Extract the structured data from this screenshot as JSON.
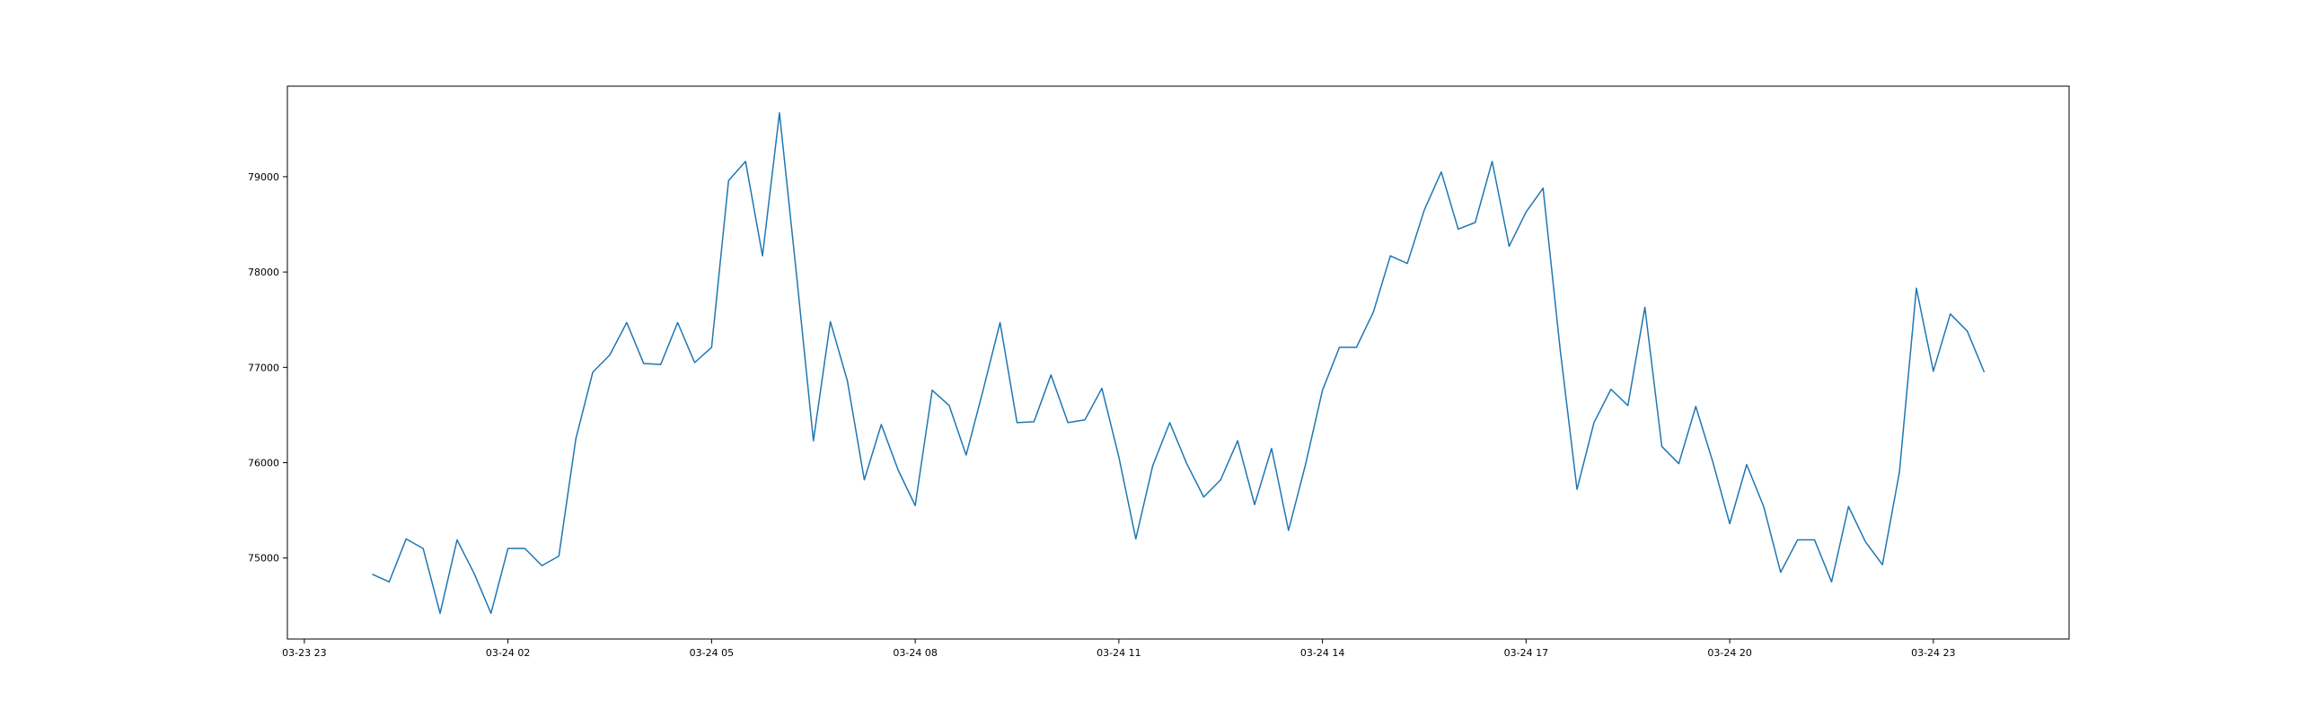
{
  "chart_data": {
    "type": "line",
    "title": "",
    "xlabel": "",
    "ylabel": "",
    "grid": false,
    "legend": "none",
    "x_range": [
      "2024-03-23 22:45",
      "2024-03-25 01:00"
    ],
    "ylim": [
      74150,
      79950
    ],
    "x_ticks": [
      {
        "t": "2024-03-23 23:00",
        "label": "03-23 23"
      },
      {
        "t": "2024-03-24 02:00",
        "label": "03-24 02"
      },
      {
        "t": "2024-03-24 05:00",
        "label": "03-24 05"
      },
      {
        "t": "2024-03-24 08:00",
        "label": "03-24 08"
      },
      {
        "t": "2024-03-24 11:00",
        "label": "03-24 11"
      },
      {
        "t": "2024-03-24 14:00",
        "label": "03-24 14"
      },
      {
        "t": "2024-03-24 17:00",
        "label": "03-24 17"
      },
      {
        "t": "2024-03-24 20:00",
        "label": "03-24 20"
      },
      {
        "t": "2024-03-24 23:00",
        "label": "03-24 23"
      }
    ],
    "y_ticks": [
      {
        "v": 75000,
        "label": "75000"
      },
      {
        "v": 76000,
        "label": "76000"
      },
      {
        "v": 77000,
        "label": "77000"
      },
      {
        "v": 78000,
        "label": "78000"
      },
      {
        "v": 79000,
        "label": "79000"
      }
    ],
    "series": [
      {
        "color": "#1f77b4",
        "x_start": "2024-03-24 00:00",
        "x_step_minutes": 15,
        "values": [
          74830,
          74750,
          75200,
          75100,
          74420,
          75190,
          74840,
          74420,
          75100,
          75100,
          74920,
          75020,
          76250,
          76950,
          77130,
          77470,
          77040,
          77030,
          77470,
          77050,
          77210,
          78960,
          79160,
          78170,
          79670,
          77980,
          76230,
          77480,
          76860,
          75820,
          76400,
          75920,
          75550,
          76760,
          76600,
          76080,
          76760,
          77470,
          76420,
          76430,
          76920,
          76420,
          76450,
          76780,
          76060,
          75200,
          75970,
          76420,
          75990,
          75640,
          75820,
          76230,
          75560,
          76150,
          75290,
          75980,
          76760,
          77210,
          77210,
          77580,
          78170,
          78090,
          78650,
          79050,
          78450,
          78520,
          79160,
          78270,
          78630,
          78880,
          77200,
          75720,
          76420,
          76770,
          76600,
          77630,
          76170,
          75990,
          76590,
          76010,
          75360,
          75980,
          75540,
          74850,
          75190,
          75190,
          74750,
          75540,
          75170,
          74930,
          75900,
          77830,
          76960,
          77560,
          77380,
          76950
        ]
      }
    ]
  }
}
